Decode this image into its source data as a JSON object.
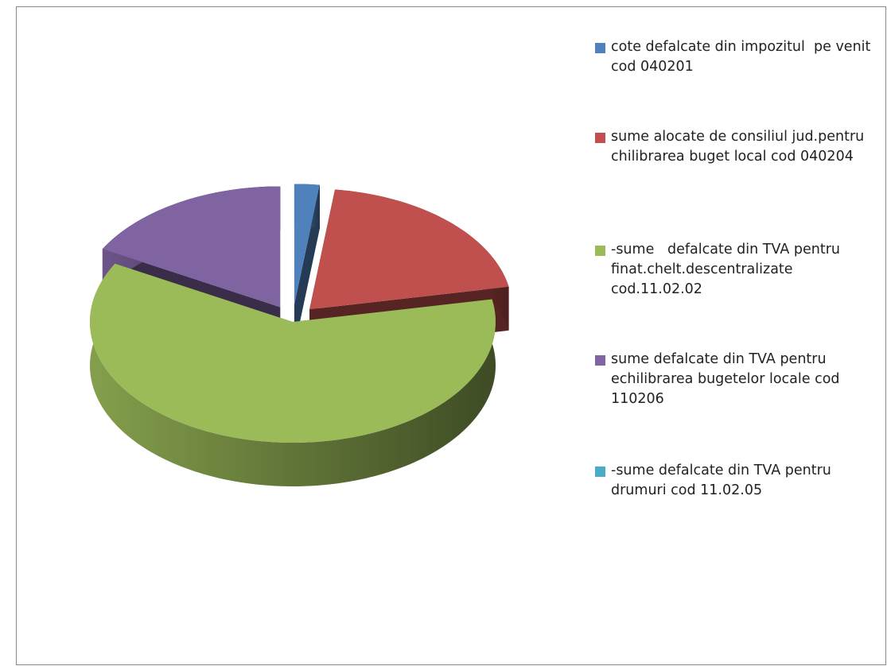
{
  "chart_data": {
    "type": "pie3d",
    "categories": [
      "cote defalcate din impozitul  pe venit cod 040201",
      "sume alocate de consiliul jud.pentru chilibrarea buget local cod 040204",
      "-sume   defalcate din TVA pentru finat.chelt.descentralizate cod.11.02.02",
      "sume defalcate din TVA pentru echilibrarea bugetelor locale cod 110206",
      "-sume defalcate din TVA pentru drumuri cod 11.02.05"
    ],
    "values": [
      2,
      20,
      61,
      17,
      0
    ],
    "colors": [
      "#4f81bd",
      "#c0504d",
      "#9bbb59",
      "#8064a2",
      "#4bacc6"
    ],
    "legend": "right"
  }
}
